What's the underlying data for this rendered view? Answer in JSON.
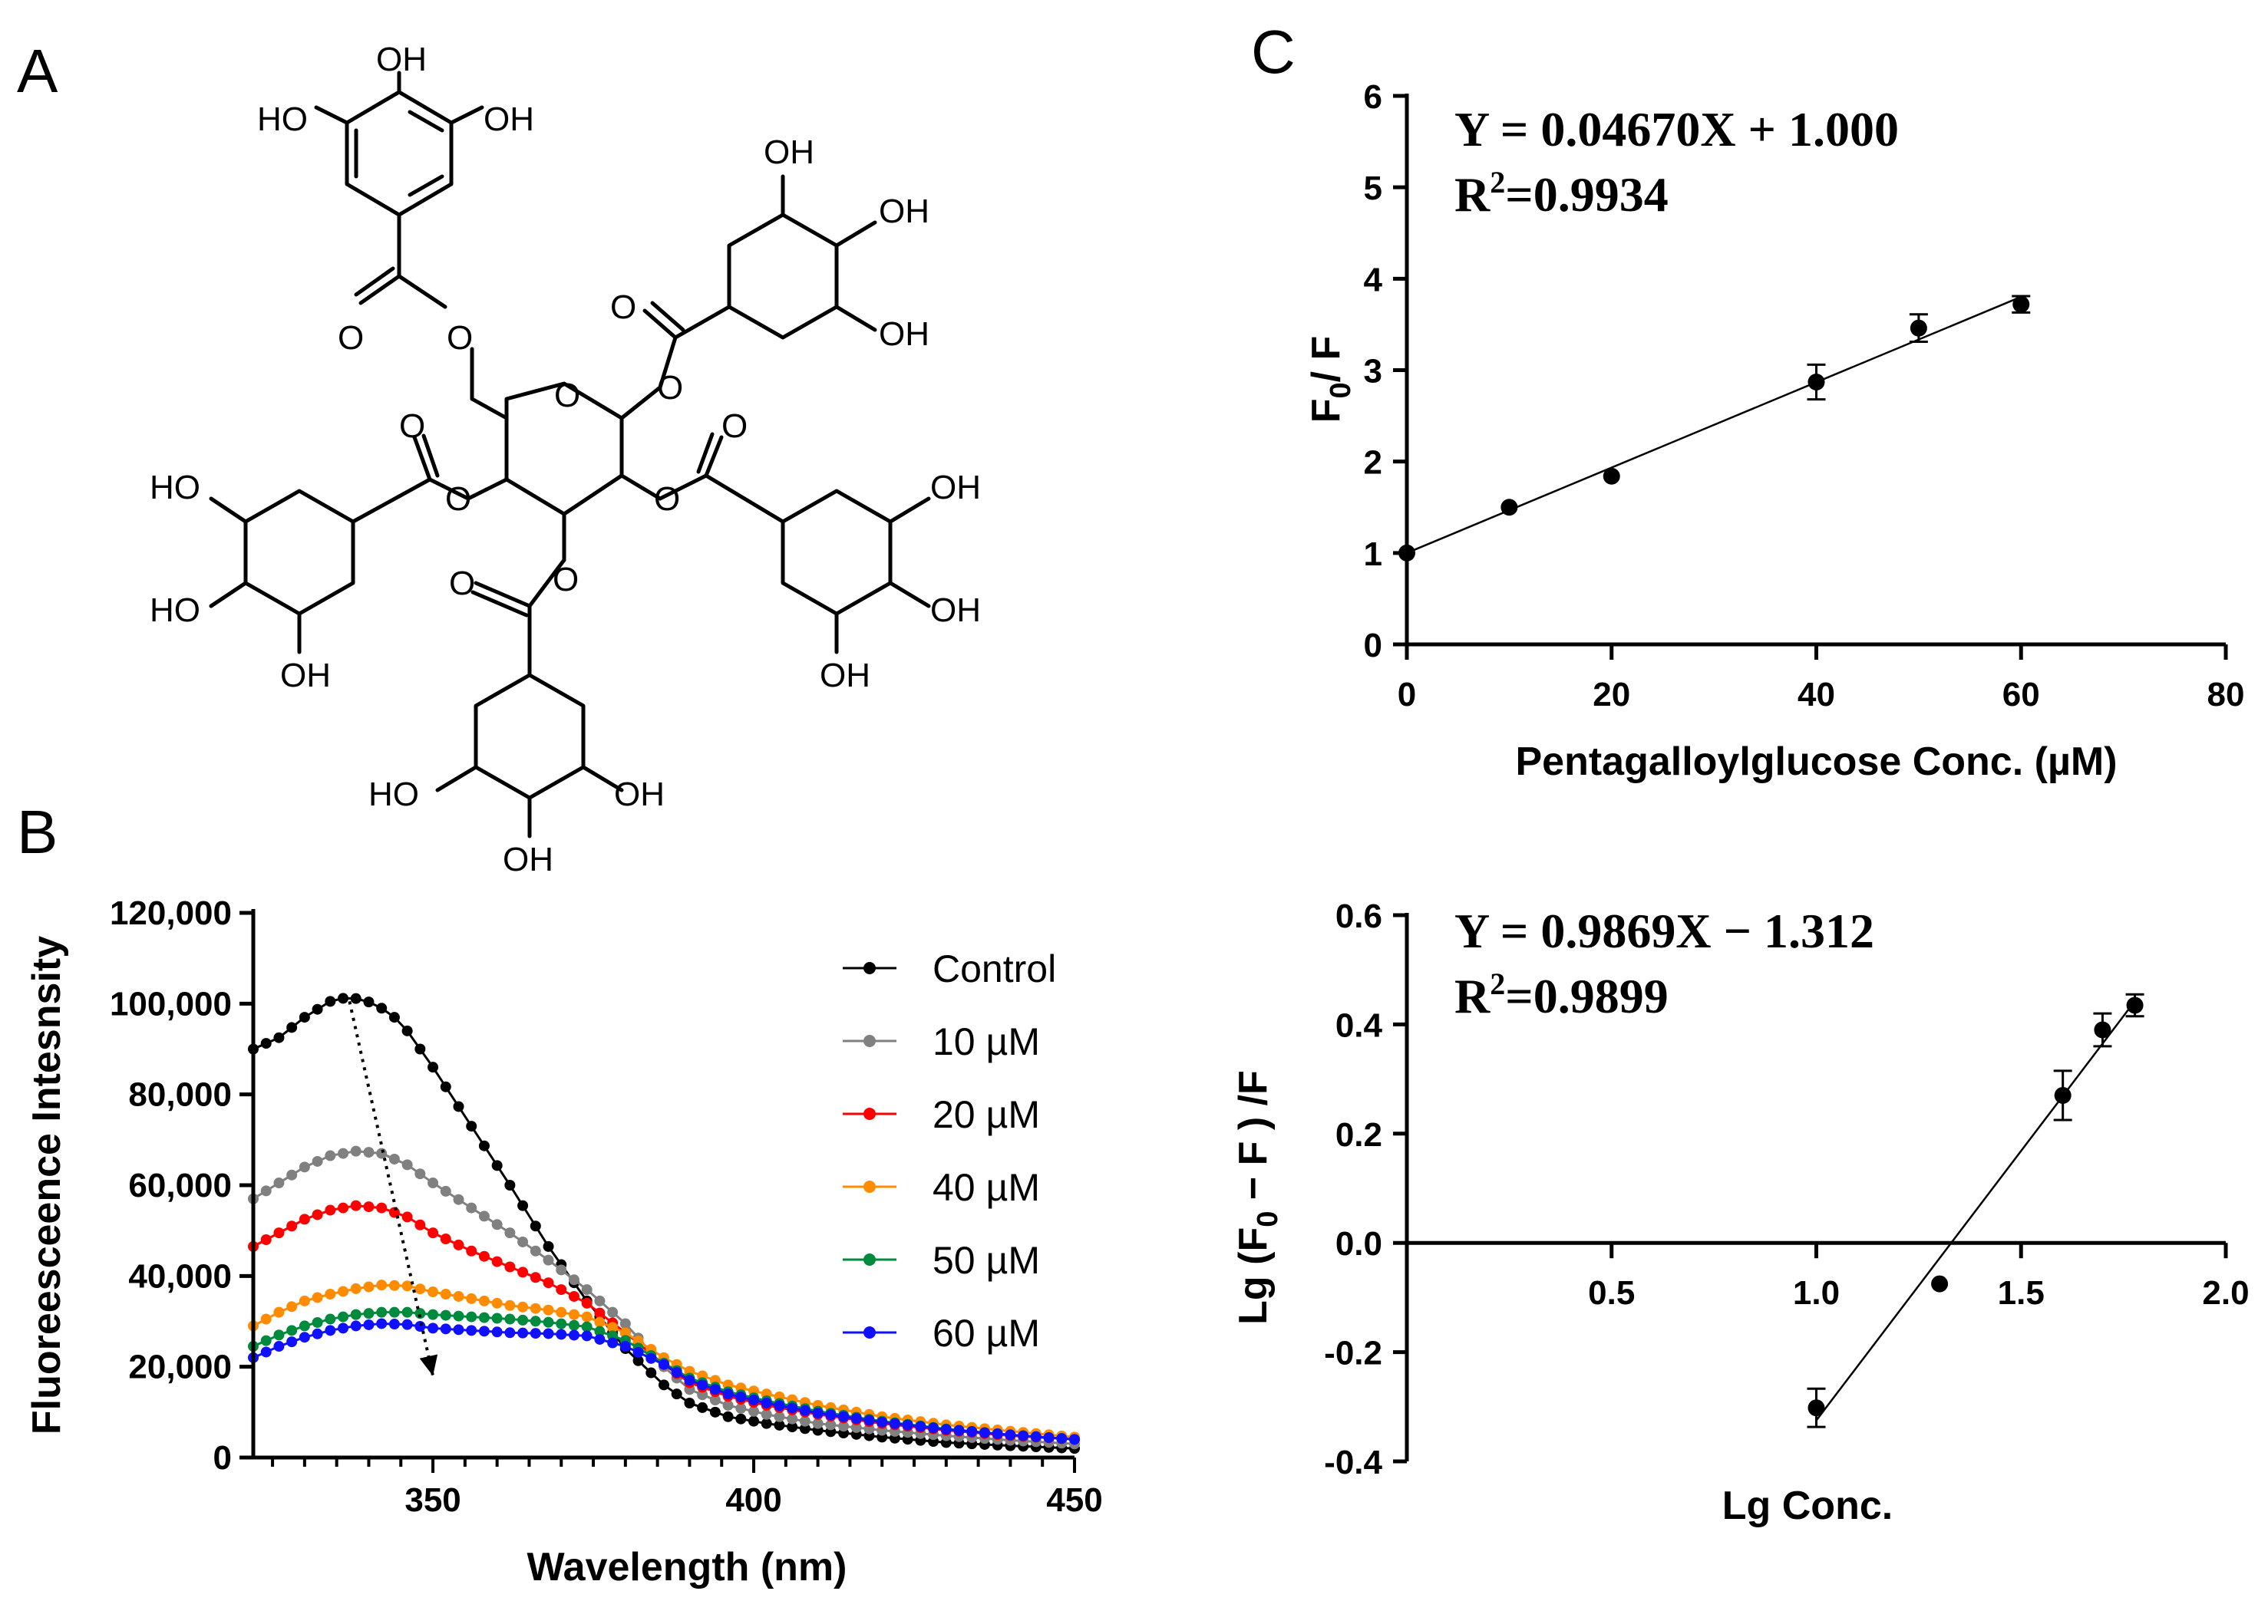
{
  "panels": {
    "a": "A",
    "b": "B",
    "c": "C"
  },
  "structure": {
    "name": "pentagalloylglucose",
    "oh": "OH",
    "ho": "HO",
    "o": "O"
  },
  "chart_data": [
    {
      "id": "B",
      "type": "line",
      "xlabel": "Wavelength (nm)",
      "ylabel": "Fluoreesceence Intesnsity",
      "xlim": [
        322,
        450
      ],
      "ylim": [
        0,
        120000
      ],
      "xticks": [
        "350",
        "400",
        "450"
      ],
      "yticks": [
        "0",
        "20,000",
        "40,000",
        "60,000",
        "80,000",
        "100,000",
        "120,000"
      ],
      "legend_position": "top-right",
      "series": [
        {
          "name": "Control",
          "color": "#000000",
          "k": [
            [
              322,
              90000
            ],
            [
              326,
              92500
            ],
            [
              330,
              97000
            ],
            [
              334,
              100500
            ],
            [
              337,
              101500
            ],
            [
              341,
              100000
            ],
            [
              345,
              96000
            ],
            [
              350,
              86000
            ],
            [
              356,
              73000
            ],
            [
              362,
              60000
            ],
            [
              368,
              46500
            ],
            [
              374,
              34500
            ],
            [
              380,
              24000
            ],
            [
              386,
              16000
            ],
            [
              390,
              12000
            ],
            [
              396,
              9000
            ],
            [
              402,
              7500
            ],
            [
              410,
              6000
            ],
            [
              420,
              4500
            ],
            [
              430,
              3300
            ],
            [
              440,
              2600
            ],
            [
              450,
              2000
            ]
          ]
        },
        {
          "name": "10 µM",
          "color": "#808080",
          "k": [
            [
              322,
              57000
            ],
            [
              326,
              60500
            ],
            [
              330,
              64000
            ],
            [
              334,
              66500
            ],
            [
              338,
              67500
            ],
            [
              342,
              67000
            ],
            [
              346,
              64500
            ],
            [
              350,
              60500
            ],
            [
              356,
              55000
            ],
            [
              362,
              49500
            ],
            [
              368,
              43500
            ],
            [
              374,
              37000
            ],
            [
              380,
              29500
            ],
            [
              386,
              20000
            ],
            [
              390,
              15000
            ],
            [
              396,
              11500
            ],
            [
              402,
              9500
            ],
            [
              410,
              7500
            ],
            [
              420,
              6000
            ],
            [
              430,
              4800
            ],
            [
              440,
              3800
            ],
            [
              450,
              3000
            ]
          ]
        },
        {
          "name": "20 µM",
          "color": "#ff0000",
          "k": [
            [
              322,
              46500
            ],
            [
              326,
              49500
            ],
            [
              330,
              52500
            ],
            [
              334,
              54500
            ],
            [
              338,
              55500
            ],
            [
              342,
              55000
            ],
            [
              346,
              53000
            ],
            [
              350,
              49500
            ],
            [
              356,
              45500
            ],
            [
              362,
              42000
            ],
            [
              368,
              38500
            ],
            [
              374,
              34000
            ],
            [
              380,
              27500
            ],
            [
              386,
              20500
            ],
            [
              390,
              16500
            ],
            [
              396,
              13500
            ],
            [
              402,
              11500
            ],
            [
              410,
              9500
            ],
            [
              420,
              7500
            ],
            [
              430,
              6000
            ],
            [
              440,
              4800
            ],
            [
              450,
              4000
            ]
          ]
        },
        {
          "name": "40 µM",
          "color": "#ff8c00",
          "k": [
            [
              322,
              29000
            ],
            [
              326,
              32000
            ],
            [
              330,
              34500
            ],
            [
              334,
              36000
            ],
            [
              338,
              37200
            ],
            [
              342,
              38000
            ],
            [
              346,
              37800
            ],
            [
              350,
              36500
            ],
            [
              356,
              35000
            ],
            [
              362,
              33500
            ],
            [
              368,
              32500
            ],
            [
              374,
              31000
            ],
            [
              380,
              27500
            ],
            [
              386,
              22000
            ],
            [
              390,
              19000
            ],
            [
              396,
              16000
            ],
            [
              402,
              14000
            ],
            [
              410,
              11500
            ],
            [
              420,
              9000
            ],
            [
              430,
              7200
            ],
            [
              440,
              5800
            ],
            [
              450,
              4500
            ]
          ]
        },
        {
          "name": "50 µM",
          "color": "#008a3e",
          "k": [
            [
              322,
              24500
            ],
            [
              326,
              27000
            ],
            [
              330,
              29000
            ],
            [
              334,
              30500
            ],
            [
              338,
              31500
            ],
            [
              342,
              32000
            ],
            [
              346,
              32000
            ],
            [
              350,
              31500
            ],
            [
              356,
              31000
            ],
            [
              362,
              30500
            ],
            [
              368,
              29800
            ],
            [
              374,
              28800
            ],
            [
              380,
              25800
            ],
            [
              386,
              20800
            ],
            [
              390,
              17500
            ],
            [
              396,
              14500
            ],
            [
              402,
              12500
            ],
            [
              410,
              10200
            ],
            [
              420,
              8000
            ],
            [
              430,
              6300
            ],
            [
              440,
              5000
            ],
            [
              450,
              4000
            ]
          ]
        },
        {
          "name": "60 µM",
          "color": "#1010ff",
          "k": [
            [
              322,
              22000
            ],
            [
              326,
              24500
            ],
            [
              330,
              26500
            ],
            [
              334,
              28000
            ],
            [
              338,
              29000
            ],
            [
              342,
              29500
            ],
            [
              346,
              29300
            ],
            [
              350,
              28500
            ],
            [
              356,
              28000
            ],
            [
              362,
              27500
            ],
            [
              368,
              27300
            ],
            [
              374,
              26800
            ],
            [
              380,
              24500
            ],
            [
              386,
              20500
            ],
            [
              390,
              17000
            ],
            [
              396,
              14000
            ],
            [
              402,
              12000
            ],
            [
              410,
              9800
            ],
            [
              420,
              7800
            ],
            [
              430,
              6200
            ],
            [
              440,
              5000
            ],
            [
              450,
              4000
            ]
          ]
        }
      ],
      "arrow": {
        "from": [
          337,
          100500
        ],
        "to": [
          350,
          18000
        ]
      }
    },
    {
      "id": "C-top",
      "type": "scatter",
      "xlabel": "Pentagalloylglucose Conc. (µM)",
      "ylabel": "F",
      "ylabel_sub": "0",
      "ylabel_tail": "/ F",
      "xlim": [
        0,
        80
      ],
      "ylim": [
        0,
        6
      ],
      "xticks": [
        "0",
        "20",
        "40",
        "60",
        "80"
      ],
      "yticks": [
        "0",
        "1",
        "2",
        "3",
        "4",
        "5",
        "6"
      ],
      "x": [
        0,
        10,
        20,
        40,
        50,
        60
      ],
      "y": [
        1.0,
        1.5,
        1.84,
        2.87,
        3.46,
        3.72
      ],
      "err": [
        0.0,
        0.0,
        0.0,
        0.19,
        0.15,
        0.09
      ],
      "fit": {
        "slope": 0.0467,
        "intercept": 1.0,
        "x_range": [
          0,
          60
        ]
      },
      "equation": "Y = 0.04670X + 1.000",
      "r2_prefix": "R",
      "r2_sup": "2",
      "r2_value": "=0.9934"
    },
    {
      "id": "C-bottom",
      "type": "scatter",
      "xlabel": "Lg Conc.",
      "ylabel": "Lg (F",
      "ylabel_sub": "0",
      "ylabel_tail": " − F ) /F",
      "xlim": [
        0,
        2.0
      ],
      "ylim": [
        -0.4,
        0.6
      ],
      "xticks": [
        "0.5",
        "1.0",
        "1.5",
        "2.0"
      ],
      "yticks": [
        "-0.4",
        "-0.2",
        "0.0",
        "0.2",
        "0.4",
        "0.6"
      ],
      "x": [
        1.0,
        1.301,
        1.602,
        1.699,
        1.778
      ],
      "y": [
        -0.302,
        -0.075,
        0.27,
        0.39,
        0.435
      ],
      "err": [
        0.035,
        0.0,
        0.045,
        0.03,
        0.02
      ],
      "fit": {
        "slope": 0.9869,
        "intercept": -1.312,
        "x_range": [
          1.0,
          1.778
        ]
      },
      "equation": "Y = 0.9869X − 1.312",
      "r2_prefix": "R",
      "r2_sup": "2",
      "r2_value": "=0.9899"
    }
  ]
}
